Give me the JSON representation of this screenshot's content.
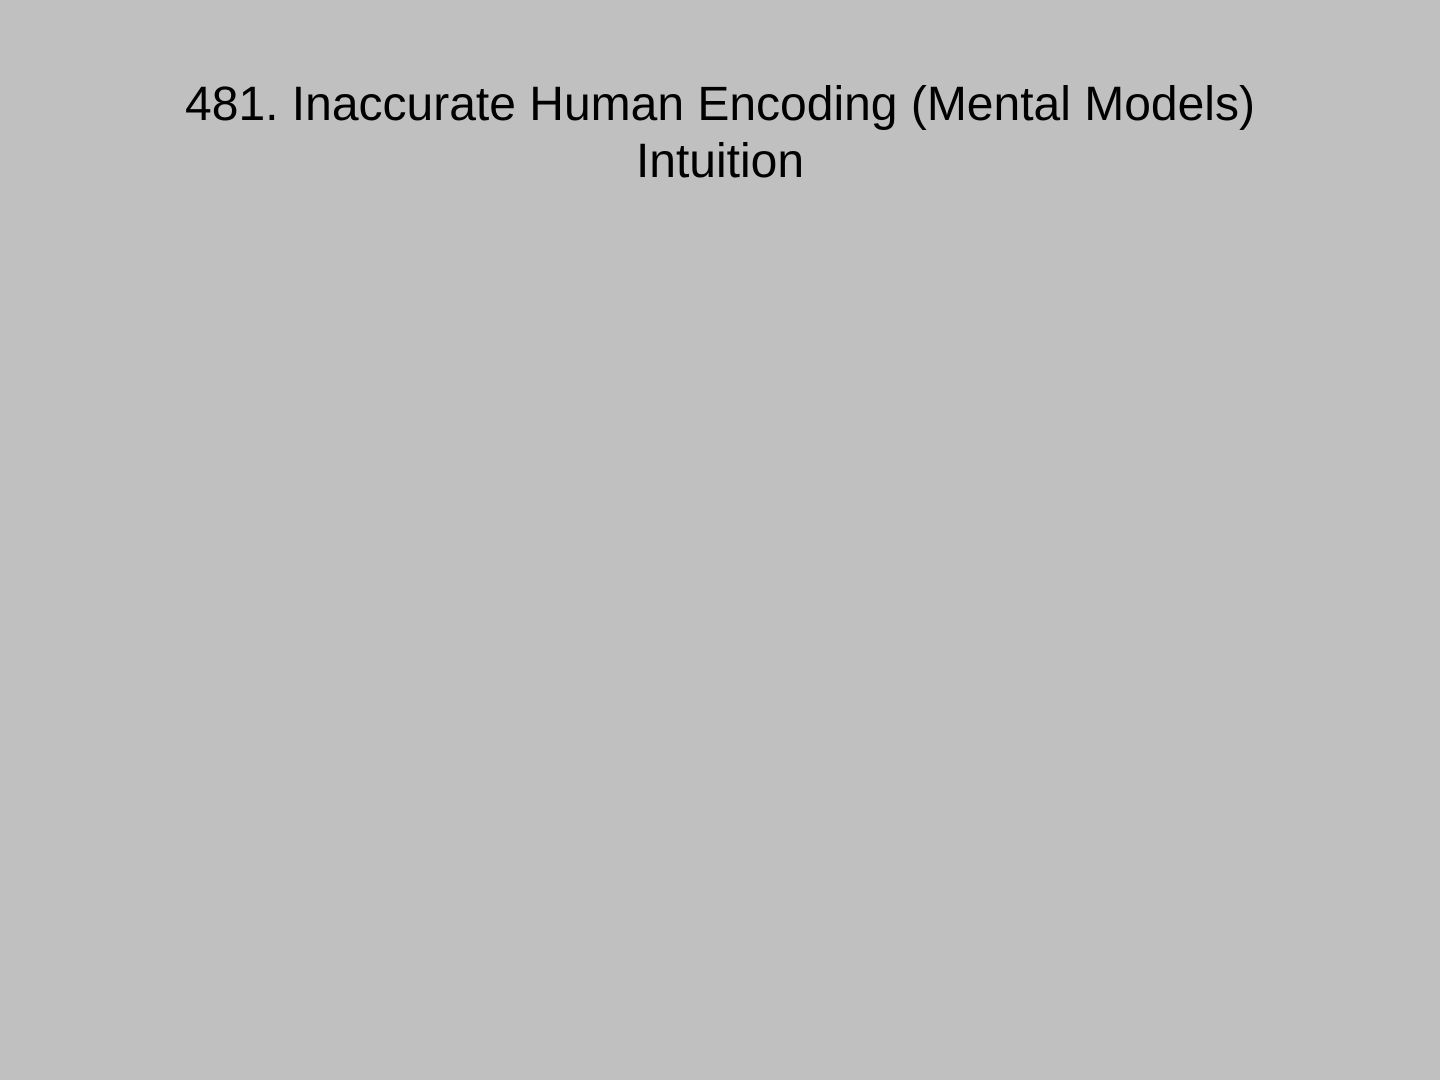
{
  "slide": {
    "background_color": "#c0c0c0",
    "title_line1": "481. Inaccurate Human Encoding (Mental Models)",
    "title_line2": "Intuition"
  }
}
